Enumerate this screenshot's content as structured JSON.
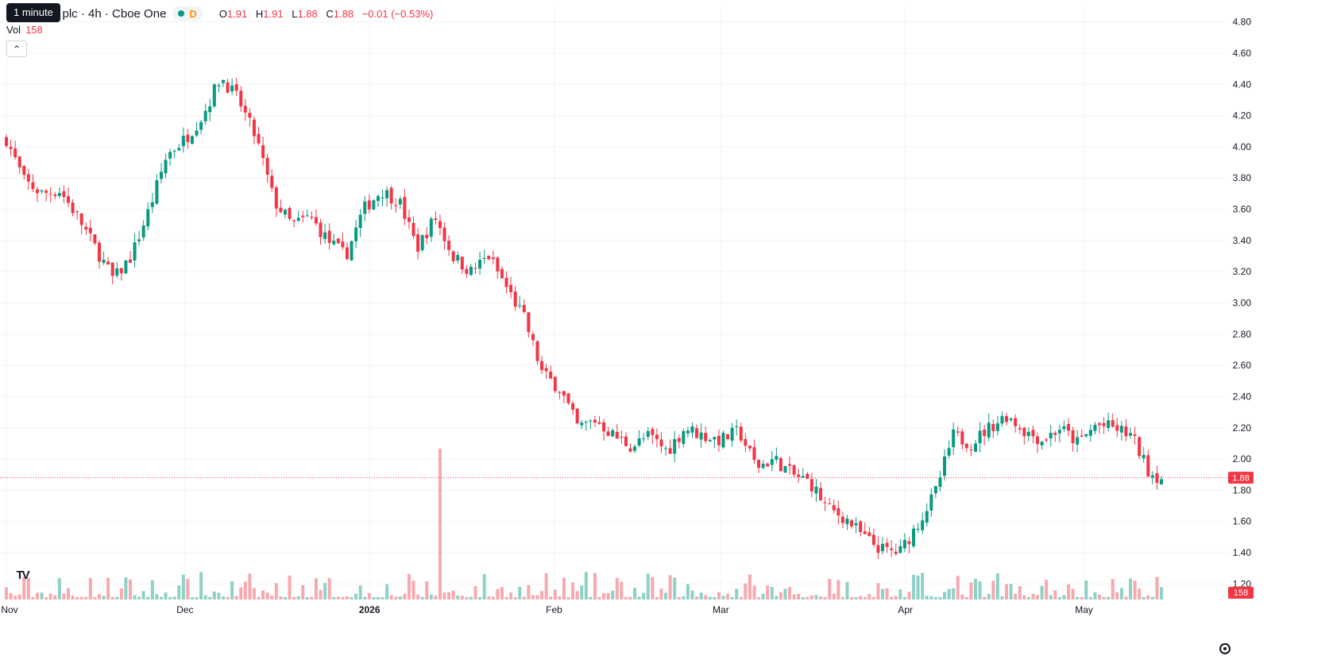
{
  "header": {
    "tooltip": "1 minute",
    "title": "a plc · 4h · Cboe One",
    "interval_badge": "D",
    "ohlc": {
      "o_label": "O",
      "o": "1.91",
      "h_label": "H",
      "h": "1.91",
      "l_label": "L",
      "l": "1.88",
      "c_label": "C",
      "c": "1.88",
      "change": "−0.01 (−0.53%)"
    },
    "volume_label": "Vol",
    "volume_value": "158",
    "collapse_icon": "chevron-up-icon",
    "logo_icon": "tradingview-logo-icon",
    "settings_icon": "gear-icon"
  },
  "colors": {
    "up": "#089981",
    "down": "#f23645",
    "up_volume": "#8fd1c6",
    "down_volume": "#f7a9ae",
    "grid": "#f0f3fa",
    "text": "#131722"
  },
  "chart_data": {
    "type": "candlestick",
    "xlabel": "",
    "ylabel": "",
    "ylim": [
      1.1,
      4.9
    ],
    "y_ticks": [
      "1.20",
      "1.40",
      "1.60",
      "1.80",
      "2.00",
      "2.20",
      "2.40",
      "2.60",
      "2.80",
      "3.00",
      "3.20",
      "3.40",
      "3.60",
      "3.80",
      "4.00",
      "4.20",
      "4.40",
      "4.60",
      "4.80"
    ],
    "x_ticks": [
      "Nov",
      "Dec",
      "2026",
      "Feb",
      "Mar",
      "Apr",
      "May"
    ],
    "x_range": [
      "2025-11-01",
      "2026-05-14"
    ],
    "last_price": "1.88",
    "last_volume": "158",
    "close_path": [
      [
        "2025-11-01",
        4.05
      ],
      [
        "2025-11-04",
        3.78
      ],
      [
        "2025-11-07",
        3.7
      ],
      [
        "2025-11-10",
        3.72
      ],
      [
        "2025-11-13",
        3.55
      ],
      [
        "2025-11-16",
        3.35
      ],
      [
        "2025-11-19",
        3.15
      ],
      [
        "2025-11-22",
        3.3
      ],
      [
        "2025-11-25",
        3.6
      ],
      [
        "2025-11-28",
        3.95
      ],
      [
        "2025-12-01",
        4.05
      ],
      [
        "2025-12-04",
        4.2
      ],
      [
        "2025-12-07",
        4.45
      ],
      [
        "2025-12-10",
        4.3
      ],
      [
        "2025-12-13",
        4.05
      ],
      [
        "2025-12-16",
        3.65
      ],
      [
        "2025-12-19",
        3.5
      ],
      [
        "2025-12-22",
        3.55
      ],
      [
        "2025-12-25",
        3.4
      ],
      [
        "2025-12-28",
        3.3
      ],
      [
        "2025-12-31",
        3.6
      ],
      [
        "2026-01-03",
        3.72
      ],
      [
        "2026-01-06",
        3.65
      ],
      [
        "2026-01-09",
        3.35
      ],
      [
        "2026-01-12",
        3.55
      ],
      [
        "2026-01-15",
        3.3
      ],
      [
        "2026-01-18",
        3.2
      ],
      [
        "2026-01-21",
        3.3
      ],
      [
        "2026-01-24",
        3.1
      ],
      [
        "2026-01-27",
        2.9
      ],
      [
        "2026-01-30",
        2.55
      ],
      [
        "2026-02-02",
        2.45
      ],
      [
        "2026-02-05",
        2.2
      ],
      [
        "2026-02-08",
        2.25
      ],
      [
        "2026-02-11",
        2.15
      ],
      [
        "2026-02-14",
        2.08
      ],
      [
        "2026-02-17",
        2.15
      ],
      [
        "2026-02-20",
        2.05
      ],
      [
        "2026-02-23",
        2.2
      ],
      [
        "2026-02-26",
        2.15
      ],
      [
        "2026-03-01",
        2.12
      ],
      [
        "2026-03-04",
        2.18
      ],
      [
        "2026-03-07",
        1.95
      ],
      [
        "2026-03-10",
        2.0
      ],
      [
        "2026-03-13",
        1.9
      ],
      [
        "2026-03-16",
        1.85
      ],
      [
        "2026-03-19",
        1.68
      ],
      [
        "2026-03-22",
        1.62
      ],
      [
        "2026-03-25",
        1.5
      ],
      [
        "2026-03-28",
        1.42
      ],
      [
        "2026-03-31",
        1.4
      ],
      [
        "2026-04-03",
        1.58
      ],
      [
        "2026-04-06",
        1.78
      ],
      [
        "2026-04-09",
        2.15
      ],
      [
        "2026-04-12",
        2.1
      ],
      [
        "2026-04-15",
        2.2
      ],
      [
        "2026-04-18",
        2.28
      ],
      [
        "2026-04-21",
        2.18
      ],
      [
        "2026-04-24",
        2.12
      ],
      [
        "2026-04-27",
        2.2
      ],
      [
        "2026-04-30",
        2.1
      ],
      [
        "2026-05-03",
        2.22
      ],
      [
        "2026-05-06",
        2.2
      ],
      [
        "2026-05-09",
        2.15
      ],
      [
        "2026-05-12",
        1.91
      ],
      [
        "2026-05-14",
        1.88
      ]
    ],
    "volume_spike": {
      "date": "2026-01-13",
      "value_relative": 1.0
    }
  }
}
